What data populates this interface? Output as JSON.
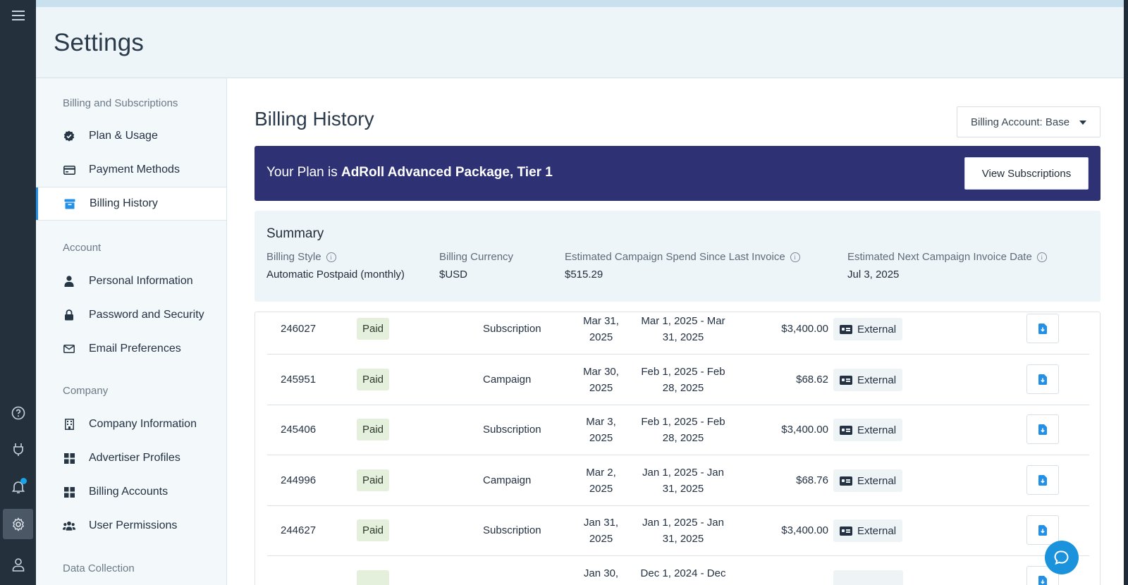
{
  "page": {
    "title": "Settings"
  },
  "rail": {
    "items": [
      {
        "name": "menu-icon"
      },
      {
        "name": "help-icon"
      },
      {
        "name": "plug-icon"
      },
      {
        "name": "bell-icon",
        "has_notification": true
      },
      {
        "name": "gear-icon",
        "active": true
      },
      {
        "name": "user-icon"
      }
    ]
  },
  "sidenav": {
    "sections": {
      "billing": "Billing and Subscriptions",
      "account": "Account",
      "company": "Company",
      "data": "Data Collection"
    },
    "items": {
      "plan_usage": "Plan & Usage",
      "payment_methods": "Payment Methods",
      "billing_history": "Billing History",
      "personal_info": "Personal Information",
      "password_security": "Password and Security",
      "email_prefs": "Email Preferences",
      "company_info": "Company Information",
      "advertiser_profiles": "Advertiser Profiles",
      "billing_accounts": "Billing Accounts",
      "user_permissions": "User Permissions"
    },
    "active": "billing_history"
  },
  "main": {
    "heading": "Billing History",
    "billing_account_button": "Billing Account: Base",
    "plan": {
      "prefix": "Your Plan is ",
      "name": "AdRoll Advanced Package, Tier 1",
      "view_button": "View Subscriptions"
    },
    "summary": {
      "title": "Summary",
      "billing_style_label": "Billing Style",
      "billing_style_value": "Automatic Postpaid (monthly)",
      "currency_label": "Billing Currency",
      "currency_value": "$USD",
      "spend_label": "Estimated Campaign Spend Since Last Invoice",
      "spend_value": "$515.29",
      "next_date_label": "Estimated Next Campaign Invoice Date",
      "next_date_value": "Jul 3, 2025"
    },
    "invoices": [
      {
        "id": "246027",
        "status": "Paid",
        "type": "Subscription",
        "date_l1": "Mar 31,",
        "date_l2": "2025",
        "period_l1": "Mar 1, 2025 - Mar",
        "period_l2": "31, 2025",
        "amount": "$3,400.00",
        "method": "External"
      },
      {
        "id": "245951",
        "status": "Paid",
        "type": "Campaign",
        "date_l1": "Mar 30,",
        "date_l2": "2025",
        "period_l1": "Feb 1, 2025 - Feb",
        "period_l2": "28, 2025",
        "amount": "$68.62",
        "method": "External"
      },
      {
        "id": "245406",
        "status": "Paid",
        "type": "Subscription",
        "date_l1": "Mar 3,",
        "date_l2": "2025",
        "period_l1": "Feb 1, 2025 - Feb",
        "period_l2": "28, 2025",
        "amount": "$3,400.00",
        "method": "External"
      },
      {
        "id": "244996",
        "status": "Paid",
        "type": "Campaign",
        "date_l1": "Mar 2,",
        "date_l2": "2025",
        "period_l1": "Jan 1, 2025 - Jan",
        "period_l2": "31, 2025",
        "amount": "$68.76",
        "method": "External"
      },
      {
        "id": "244627",
        "status": "Paid",
        "type": "Subscription",
        "date_l1": "Jan 31,",
        "date_l2": "2025",
        "period_l1": "Jan 1, 2025 - Jan",
        "period_l2": "31, 2025",
        "amount": "$3,400.00",
        "method": "External"
      },
      {
        "id": "",
        "status": "",
        "type": "",
        "date_l1": "Jan 30,",
        "date_l2": "",
        "period_l1": "Dec 1, 2024 - Dec",
        "period_l2": "",
        "amount": "",
        "method": ""
      }
    ]
  },
  "colors": {
    "accent": "#2190e6",
    "plan_banner": "#2e3274",
    "paid_badge": "#e4efdc",
    "rail": "#24303b"
  }
}
